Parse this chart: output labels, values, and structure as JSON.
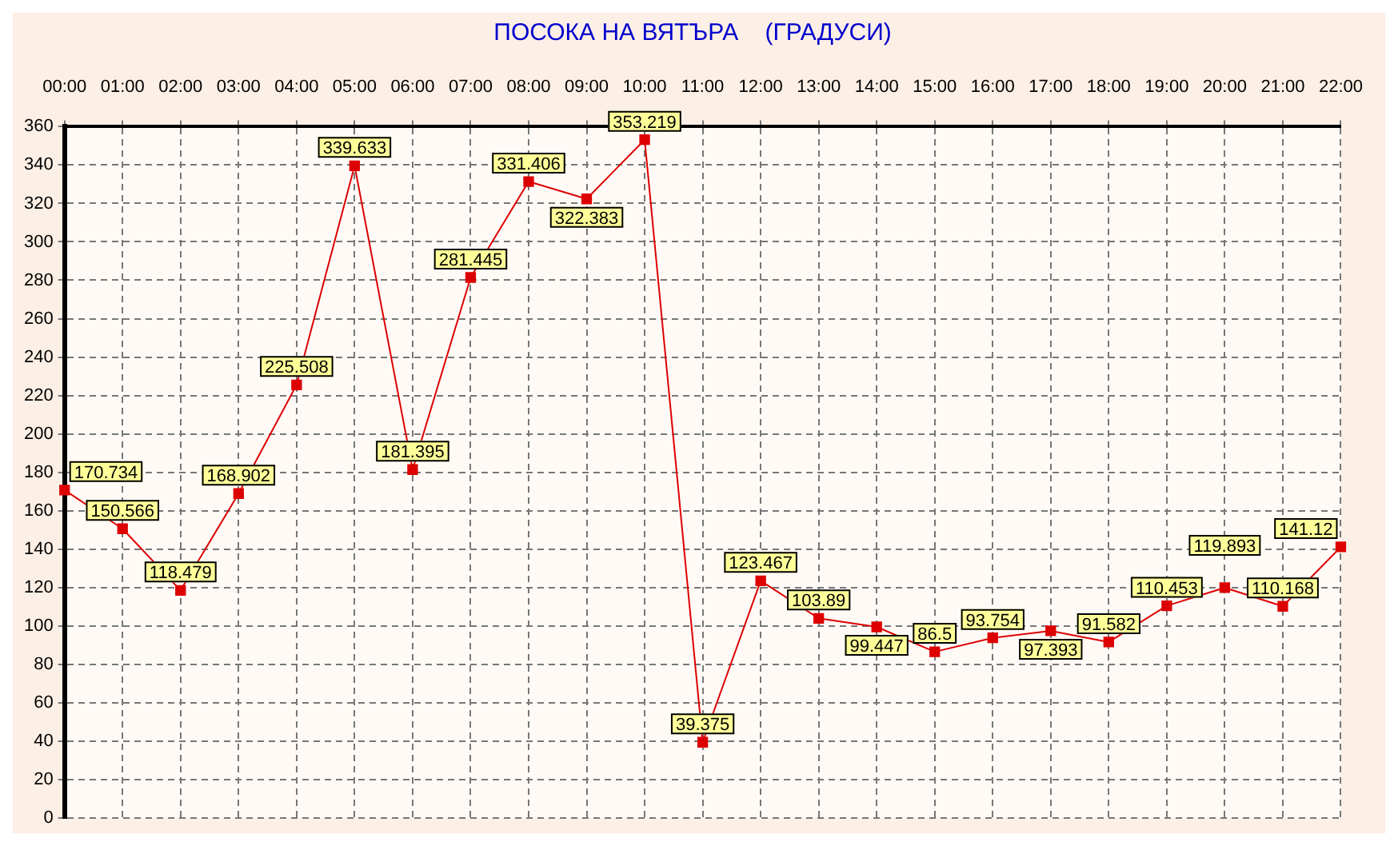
{
  "chart_data": {
    "type": "line",
    "title": "ПОСОКА НА ВЯТЪРА    (ГРАДУСИ)",
    "categories": [
      "00:00",
      "01:00",
      "02:00",
      "03:00",
      "04:00",
      "05:00",
      "06:00",
      "07:00",
      "08:00",
      "09:00",
      "10:00",
      "11:00",
      "12:00",
      "13:00",
      "14:00",
      "15:00",
      "16:00",
      "17:00",
      "18:00",
      "19:00",
      "20:00",
      "21:00",
      "22:00"
    ],
    "series": [
      {
        "color": "#dd0000",
        "values": [
          170.734,
          150.566,
          118.479,
          168.902,
          225.508,
          339.633,
          181.395,
          281.445,
          331.406,
          322.383,
          353.219,
          39.375,
          123.467,
          103.89,
          99.447,
          86.5,
          93.754,
          97.393,
          91.582,
          110.453,
          119.893,
          110.168,
          141.12
        ]
      }
    ],
    "ylim": [
      0,
      360
    ],
    "yticks": [
      0,
      20,
      40,
      60,
      80,
      100,
      120,
      140,
      160,
      180,
      200,
      220,
      240,
      260,
      280,
      300,
      320,
      340,
      360
    ],
    "grid": true,
    "marker": "square",
    "line_style": "solid",
    "data_labels": true,
    "legend": false
  }
}
